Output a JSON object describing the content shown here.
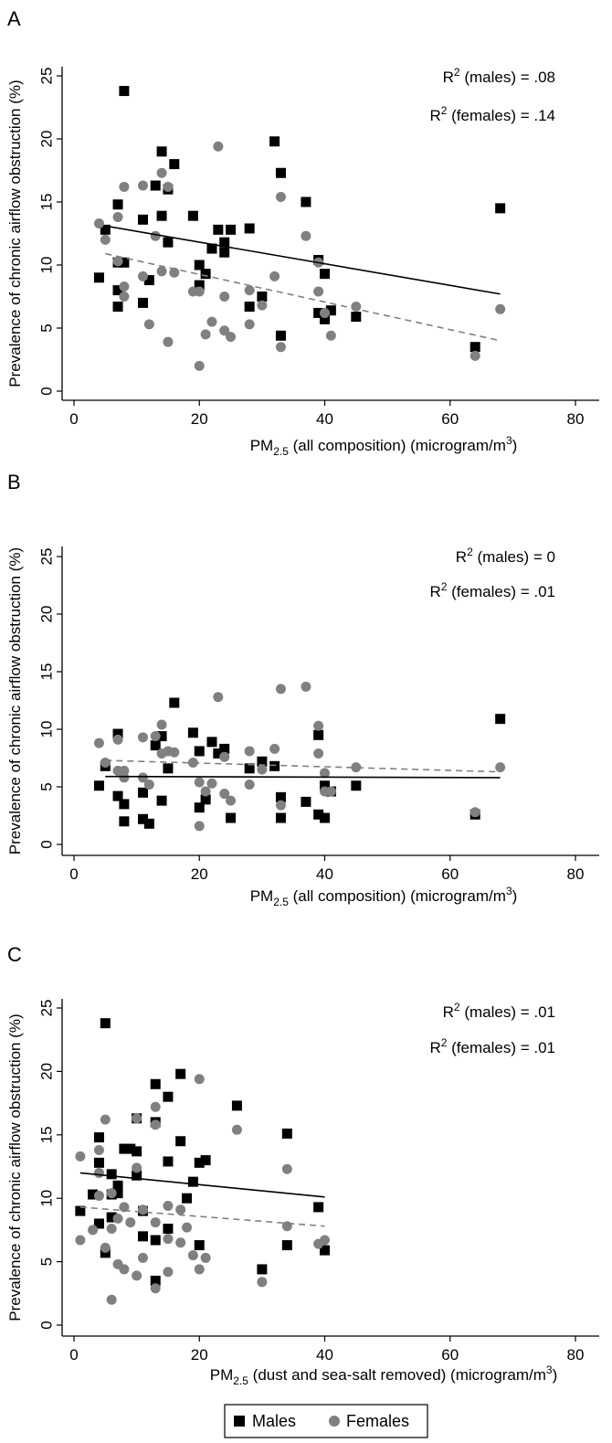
{
  "colors": {
    "males": "#000000",
    "females": "#808080",
    "axis": "#000000",
    "background": "#ffffff"
  },
  "legend": {
    "males": "Males",
    "females": "Females"
  },
  "chart_data": [
    {
      "type": "scatter",
      "panel": "A",
      "xlabel": "PM2.5 (all composition) (microgram/m3)",
      "xlabel_main": "PM",
      "xlabel_sub": "2.5",
      "xlabel_rest": " (all composition) (microgram/m",
      "xlabel_sup": "3",
      "xlabel_end": ")",
      "ylabel": "Prevalence of chronic airflow obstruction (%)",
      "xlim": [
        0,
        85
      ],
      "ylim": [
        0,
        25
      ],
      "xticks": [
        0,
        20,
        40,
        60,
        80
      ],
      "yticks": [
        0,
        5,
        10,
        15,
        20,
        25
      ],
      "r2_males": "R2 (males) = .08",
      "r2_females": "R2 (females) = .14",
      "r2_males_prefix": "R",
      "r2_males_sup": "2",
      "r2_males_suffix": "  (males) = .08",
      "r2_females_prefix": "R",
      "r2_females_sup": "2",
      "r2_females_suffix": "  (females) = .14",
      "series": [
        {
          "name": "Males",
          "marker": "square",
          "points": [
            [
              4,
              9
            ],
            [
              5,
              12.8
            ],
            [
              7,
              14.8
            ],
            [
              7,
              10.2
            ],
            [
              7,
              8
            ],
            [
              7,
              6.7
            ],
            [
              8,
              23.8
            ],
            [
              8,
              10.2
            ],
            [
              11,
              13.6
            ],
            [
              11,
              7
            ],
            [
              12,
              8.8
            ],
            [
              13,
              16.3
            ],
            [
              14,
              19
            ],
            [
              14,
              13.9
            ],
            [
              15,
              16
            ],
            [
              15,
              11.8
            ],
            [
              16,
              18
            ],
            [
              19,
              13.9
            ],
            [
              20,
              10
            ],
            [
              20,
              8.4
            ],
            [
              21,
              9.3
            ],
            [
              22,
              11.3
            ],
            [
              23,
              12.8
            ],
            [
              24,
              11.8
            ],
            [
              24,
              11
            ],
            [
              25,
              12.8
            ],
            [
              28,
              12.9
            ],
            [
              28,
              6.7
            ],
            [
              30,
              7.5
            ],
            [
              32,
              19.8
            ],
            [
              33,
              17.3
            ],
            [
              33,
              4.4
            ],
            [
              37,
              15
            ],
            [
              39,
              10.4
            ],
            [
              39,
              6.2
            ],
            [
              40,
              9.3
            ],
            [
              40,
              5.7
            ],
            [
              41,
              6.4
            ],
            [
              45,
              5.9
            ],
            [
              64,
              3.5
            ],
            [
              68,
              14.5
            ]
          ],
          "fit": [
            [
              5,
              13.1
            ],
            [
              68,
              7.7
            ]
          ]
        },
        {
          "name": "Females",
          "marker": "circle",
          "points": [
            [
              4,
              13.3
            ],
            [
              5,
              12
            ],
            [
              7,
              13.8
            ],
            [
              7,
              10.3
            ],
            [
              8,
              16.2
            ],
            [
              8,
              8.3
            ],
            [
              8,
              7.5
            ],
            [
              11,
              16.3
            ],
            [
              11,
              9.1
            ],
            [
              12,
              5.3
            ],
            [
              13,
              12.3
            ],
            [
              14,
              17.3
            ],
            [
              14,
              9.5
            ],
            [
              15,
              16.2
            ],
            [
              15,
              3.9
            ],
            [
              16,
              9.4
            ],
            [
              19,
              7.9
            ],
            [
              20,
              7.9
            ],
            [
              20,
              2
            ],
            [
              21,
              4.5
            ],
            [
              22,
              5.5
            ],
            [
              23,
              19.4
            ],
            [
              24,
              7.5
            ],
            [
              24,
              4.8
            ],
            [
              25,
              4.3
            ],
            [
              28,
              8
            ],
            [
              28,
              5.3
            ],
            [
              30,
              6.8
            ],
            [
              32,
              9.1
            ],
            [
              33,
              15.4
            ],
            [
              33,
              3.5
            ],
            [
              37,
              12.3
            ],
            [
              39,
              10.2
            ],
            [
              39,
              7.9
            ],
            [
              40,
              6.2
            ],
            [
              41,
              4.4
            ],
            [
              45,
              6.7
            ],
            [
              64,
              2.8
            ],
            [
              68,
              6.5
            ]
          ],
          "fit": [
            [
              5,
              10.9
            ],
            [
              68,
              4
            ]
          ]
        }
      ]
    },
    {
      "type": "scatter",
      "panel": "B",
      "xlabel": "PM2.5 (all composition) (microgram/m3)",
      "xlabel_main": "PM",
      "xlabel_sub": "2.5",
      "xlabel_rest": " (all composition) (microgram/m",
      "xlabel_sup": "3",
      "xlabel_end": ")",
      "ylabel": "Prevalence of chronic airflow obstruction (%)",
      "xlim": [
        0,
        85
      ],
      "ylim": [
        0,
        25
      ],
      "xticks": [
        0,
        20,
        40,
        60,
        80
      ],
      "yticks": [
        0,
        5,
        10,
        15,
        20,
        25
      ],
      "r2_males": "R2 (males) = 0",
      "r2_females": "R2 (females) = .01",
      "r2_males_prefix": "R",
      "r2_males_sup": "2",
      "r2_males_suffix": "  (males) = 0",
      "r2_females_prefix": "R",
      "r2_females_sup": "2",
      "r2_females_suffix": "  (females) = .01",
      "series": [
        {
          "name": "Males",
          "marker": "square",
          "points": [
            [
              4,
              5.1
            ],
            [
              5,
              6.8
            ],
            [
              7,
              9.6
            ],
            [
              7,
              4.2
            ],
            [
              8,
              3.5
            ],
            [
              8,
              2
            ],
            [
              11,
              4.5
            ],
            [
              11,
              2.2
            ],
            [
              12,
              1.8
            ],
            [
              13,
              8.6
            ],
            [
              14,
              9.4
            ],
            [
              14,
              3.8
            ],
            [
              15,
              6.6
            ],
            [
              16,
              12.3
            ],
            [
              19,
              9.7
            ],
            [
              20,
              8.1
            ],
            [
              20,
              3.2
            ],
            [
              21,
              3.9
            ],
            [
              22,
              8.9
            ],
            [
              23,
              7.9
            ],
            [
              24,
              8.3
            ],
            [
              25,
              2.3
            ],
            [
              28,
              6.6
            ],
            [
              30,
              7.2
            ],
            [
              32,
              6.8
            ],
            [
              33,
              4.1
            ],
            [
              33,
              2.3
            ],
            [
              37,
              3.7
            ],
            [
              39,
              9.5
            ],
            [
              39,
              2.6
            ],
            [
              40,
              5.1
            ],
            [
              40,
              2.3
            ],
            [
              41,
              4.6
            ],
            [
              45,
              5.1
            ],
            [
              64,
              2.6
            ],
            [
              68,
              10.9
            ]
          ],
          "fit": [
            [
              5,
              5.9
            ],
            [
              68,
              5.8
            ]
          ]
        },
        {
          "name": "Females",
          "marker": "circle",
          "points": [
            [
              4,
              8.8
            ],
            [
              5,
              7.1
            ],
            [
              7,
              9.1
            ],
            [
              7,
              6.4
            ],
            [
              8,
              6.4
            ],
            [
              8,
              5.8
            ],
            [
              11,
              9.3
            ],
            [
              11,
              5.8
            ],
            [
              12,
              5.2
            ],
            [
              13,
              9.4
            ],
            [
              14,
              10.4
            ],
            [
              14,
              7.9
            ],
            [
              15,
              8.1
            ],
            [
              16,
              8
            ],
            [
              19,
              7.1
            ],
            [
              20,
              5.4
            ],
            [
              20,
              1.6
            ],
            [
              21,
              4.6
            ],
            [
              22,
              5.3
            ],
            [
              23,
              12.8
            ],
            [
              24,
              7.6
            ],
            [
              24,
              4.4
            ],
            [
              25,
              3.8
            ],
            [
              28,
              8.1
            ],
            [
              28,
              5.2
            ],
            [
              30,
              6.5
            ],
            [
              32,
              8.3
            ],
            [
              33,
              13.5
            ],
            [
              33,
              3.4
            ],
            [
              37,
              13.7
            ],
            [
              39,
              10.3
            ],
            [
              39,
              7.9
            ],
            [
              40,
              6.2
            ],
            [
              40,
              4.6
            ],
            [
              41,
              4.6
            ],
            [
              45,
              6.7
            ],
            [
              64,
              2.8
            ],
            [
              68,
              6.7
            ]
          ],
          "fit": [
            [
              5,
              7.3
            ],
            [
              68,
              6.3
            ]
          ]
        }
      ]
    },
    {
      "type": "scatter",
      "panel": "C",
      "xlabel": "PM2.5 (dust and sea-salt removed) (microgram/m3)",
      "xlabel_main": "PM",
      "xlabel_sub": "2.5",
      "xlabel_rest": " (dust and sea-salt removed) (microgram/m",
      "xlabel_sup": "3",
      "xlabel_end": ")",
      "ylabel": "Prevalence of chronic airflow obstruction (%)",
      "xlim": [
        0,
        85
      ],
      "ylim": [
        0,
        25
      ],
      "xticks": [
        0,
        20,
        40,
        60,
        80
      ],
      "yticks": [
        0,
        5,
        10,
        15,
        20,
        25
      ],
      "r2_males": "R2 (males) = .01",
      "r2_females": "R2 (females) = .01",
      "r2_males_prefix": "R",
      "r2_males_sup": "2",
      "r2_males_suffix": "  (males) = .01",
      "r2_females_prefix": "R",
      "r2_females_sup": "2",
      "r2_females_suffix": "  (females) = .01",
      "series": [
        {
          "name": "Males",
          "marker": "square",
          "points": [
            [
              1,
              9
            ],
            [
              3,
              10.3
            ],
            [
              4,
              14.8
            ],
            [
              4,
              12.8
            ],
            [
              4,
              8
            ],
            [
              5,
              23.8
            ],
            [
              5,
              5.7
            ],
            [
              6,
              11.9
            ],
            [
              6,
              8.5
            ],
            [
              6,
              10.3
            ],
            [
              7,
              11
            ],
            [
              7,
              10.4
            ],
            [
              8,
              13.9
            ],
            [
              9,
              13.9
            ],
            [
              10,
              16.3
            ],
            [
              10,
              13.7
            ],
            [
              10,
              11.8
            ],
            [
              11,
              9
            ],
            [
              11,
              7
            ],
            [
              13,
              19
            ],
            [
              13,
              16
            ],
            [
              13,
              6.7
            ],
            [
              13,
              3.5
            ],
            [
              15,
              18
            ],
            [
              15,
              12.9
            ],
            [
              15,
              7.6
            ],
            [
              17,
              19.8
            ],
            [
              17,
              14.5
            ],
            [
              18,
              10
            ],
            [
              19,
              11.3
            ],
            [
              20,
              12.8
            ],
            [
              20,
              6.3
            ],
            [
              21,
              13
            ],
            [
              26,
              17.3
            ],
            [
              30,
              4.4
            ],
            [
              34,
              15.1
            ],
            [
              34,
              6.3
            ],
            [
              39,
              9.3
            ],
            [
              40,
              5.9
            ]
          ],
          "fit": [
            [
              1,
              12
            ],
            [
              40,
              10.1
            ]
          ]
        },
        {
          "name": "Females",
          "marker": "circle",
          "points": [
            [
              1,
              13.3
            ],
            [
              1,
              6.7
            ],
            [
              3,
              7.5
            ],
            [
              4,
              13.8
            ],
            [
              4,
              12
            ],
            [
              4,
              10.2
            ],
            [
              5,
              16.2
            ],
            [
              5,
              6.1
            ],
            [
              6,
              10.4
            ],
            [
              6,
              7.6
            ],
            [
              6,
              2
            ],
            [
              7,
              8.4
            ],
            [
              7,
              4.8
            ],
            [
              8,
              9.3
            ],
            [
              8,
              4.4
            ],
            [
              9,
              8.1
            ],
            [
              10,
              16.3
            ],
            [
              10,
              12.4
            ],
            [
              10,
              3.9
            ],
            [
              11,
              9.1
            ],
            [
              11,
              5.3
            ],
            [
              13,
              17.2
            ],
            [
              13,
              15.8
            ],
            [
              13,
              8.1
            ],
            [
              13,
              2.9
            ],
            [
              15,
              9.4
            ],
            [
              15,
              6.8
            ],
            [
              15,
              4.2
            ],
            [
              17,
              9.1
            ],
            [
              17,
              6.5
            ],
            [
              18,
              7.7
            ],
            [
              19,
              5.5
            ],
            [
              20,
              19.4
            ],
            [
              20,
              4.4
            ],
            [
              21,
              5.3
            ],
            [
              26,
              15.4
            ],
            [
              30,
              3.4
            ],
            [
              34,
              12.3
            ],
            [
              34,
              7.8
            ],
            [
              39,
              6.4
            ],
            [
              40,
              6.7
            ]
          ],
          "fit": [
            [
              1,
              9.3
            ],
            [
              40,
              7.8
            ]
          ]
        }
      ]
    }
  ]
}
